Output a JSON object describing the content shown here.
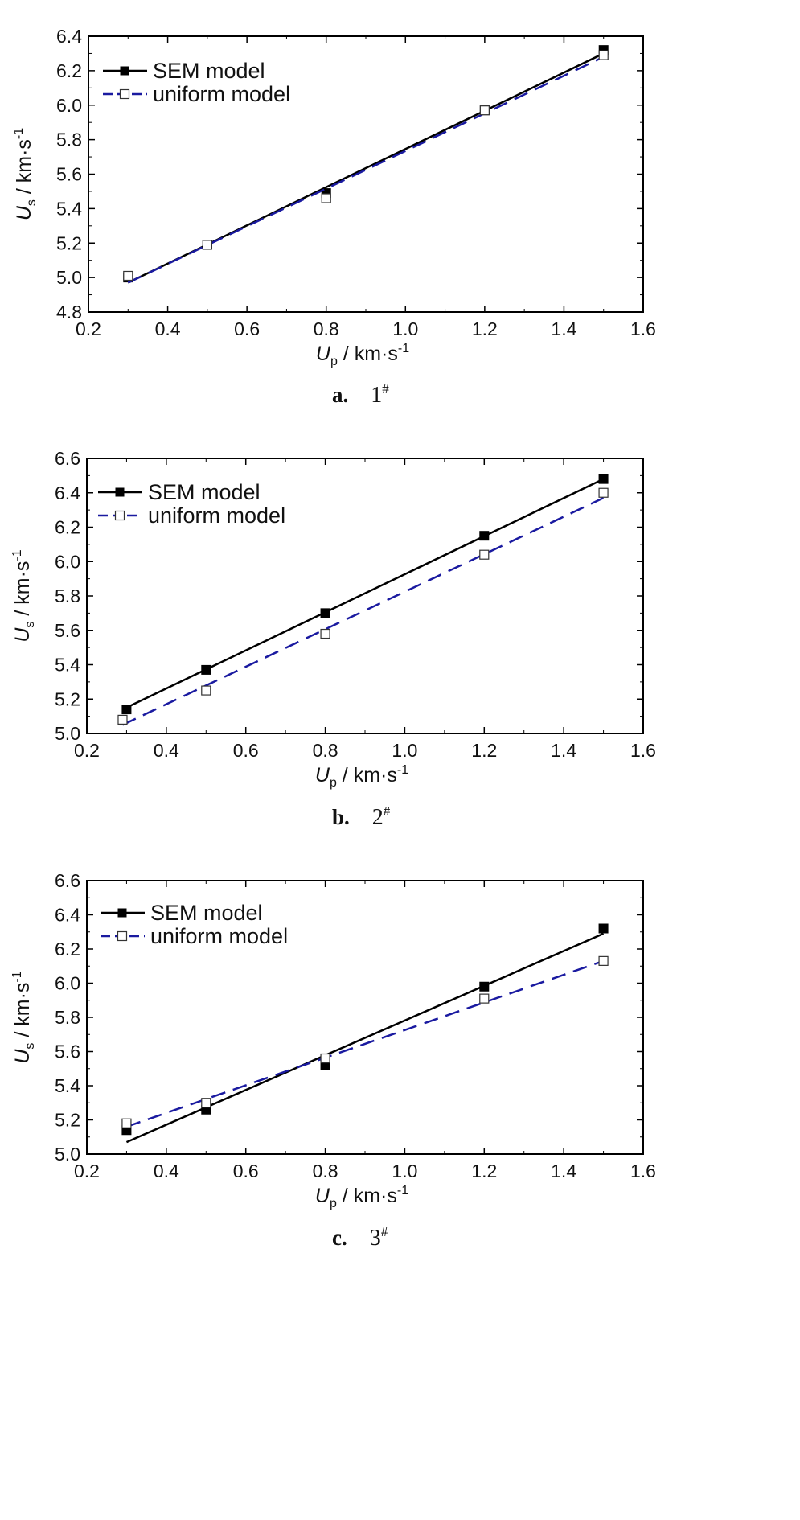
{
  "chart_data": [
    {
      "type": "line",
      "caption": {
        "letter": "a.",
        "number": "1",
        "superscript": "#"
      },
      "xlabel": {
        "main": "U",
        "sub": "p",
        "unit": " / km·s",
        "sup": "-1"
      },
      "ylabel": {
        "main": "U",
        "sub": "s",
        "unit": " / km·s",
        "sup": "-1"
      },
      "xlim": [
        0.2,
        1.6
      ],
      "ylim": [
        4.8,
        6.4
      ],
      "xticks": [
        "0.2",
        "0.4",
        "0.6",
        "0.8",
        "1.0",
        "1.2",
        "1.4",
        "1.6"
      ],
      "yticks": [
        "4.8",
        "5.0",
        "5.2",
        "5.4",
        "5.6",
        "5.8",
        "6.0",
        "6.2",
        "6.4"
      ],
      "legend_position": "top-left",
      "series": [
        {
          "name": "SEM model",
          "color": "#000000",
          "marker": "filled-square",
          "line": "solid",
          "points": [
            [
              0.3,
              5.0
            ],
            [
              0.5,
              5.19
            ],
            [
              0.8,
              5.49
            ],
            [
              1.2,
              5.97
            ],
            [
              1.5,
              6.32
            ]
          ],
          "fit": [
            [
              0.3,
              4.97
            ],
            [
              1.5,
              6.3
            ]
          ]
        },
        {
          "name": "uniform model",
          "color": "#1a1aa0",
          "marker": "open-square",
          "line": "dashed",
          "points": [
            [
              0.3,
              5.01
            ],
            [
              0.5,
              5.19
            ],
            [
              0.8,
              5.46
            ],
            [
              1.2,
              5.97
            ],
            [
              1.5,
              6.29
            ]
          ],
          "fit": [
            [
              0.3,
              4.97
            ],
            [
              1.5,
              6.28
            ]
          ]
        }
      ]
    },
    {
      "type": "line",
      "caption": {
        "letter": "b.",
        "number": "2",
        "superscript": "#"
      },
      "xlabel": {
        "main": "U",
        "sub": "p",
        "unit": " / km·s",
        "sup": "-1"
      },
      "ylabel": {
        "main": "U",
        "sub": "s",
        "unit": " / km·s",
        "sup": "-1"
      },
      "xlim": [
        0.2,
        1.6
      ],
      "ylim": [
        5.0,
        6.6
      ],
      "xticks": [
        "0.2",
        "0.4",
        "0.6",
        "0.8",
        "1.0",
        "1.2",
        "1.4",
        "1.6"
      ],
      "yticks": [
        "5.0",
        "5.2",
        "5.4",
        "5.6",
        "5.8",
        "6.0",
        "6.2",
        "6.4",
        "6.6"
      ],
      "legend_position": "top-left",
      "series": [
        {
          "name": "SEM model",
          "color": "#000000",
          "marker": "filled-square",
          "line": "solid",
          "points": [
            [
              0.3,
              5.14
            ],
            [
              0.5,
              5.37
            ],
            [
              0.8,
              5.7
            ],
            [
              1.2,
              6.15
            ],
            [
              1.5,
              6.48
            ]
          ],
          "fit": [
            [
              0.29,
              5.14
            ],
            [
              1.5,
              6.48
            ]
          ]
        },
        {
          "name": "uniform model",
          "color": "#1a1aa0",
          "marker": "open-square",
          "line": "dashed",
          "points": [
            [
              0.29,
              5.08
            ],
            [
              0.5,
              5.25
            ],
            [
              0.8,
              5.58
            ],
            [
              1.2,
              6.04
            ],
            [
              1.5,
              6.4
            ]
          ],
          "fit": [
            [
              0.29,
              5.05
            ],
            [
              1.5,
              6.37
            ]
          ]
        }
      ]
    },
    {
      "type": "line",
      "caption": {
        "letter": "c.",
        "number": "3",
        "superscript": "#"
      },
      "xlabel": {
        "main": "U",
        "sub": "p",
        "unit": " / km·s",
        "sup": "-1"
      },
      "ylabel": {
        "main": "U",
        "sub": "s",
        "unit": " / km·s",
        "sup": "-1"
      },
      "xlim": [
        0.2,
        1.6
      ],
      "ylim": [
        5.0,
        6.6
      ],
      "xticks": [
        "0.2",
        "0.4",
        "0.6",
        "0.8",
        "1.0",
        "1.2",
        "1.4",
        "1.6"
      ],
      "yticks": [
        "5.0",
        "5.2",
        "5.4",
        "5.6",
        "5.8",
        "6.0",
        "6.2",
        "6.4",
        "6.6"
      ],
      "legend_position": "top-left",
      "series": [
        {
          "name": "SEM model",
          "color": "#000000",
          "marker": "filled-square",
          "line": "solid",
          "points": [
            [
              0.3,
              5.14
            ],
            [
              0.5,
              5.26
            ],
            [
              0.8,
              5.52
            ],
            [
              1.2,
              5.98
            ],
            [
              1.5,
              6.32
            ]
          ],
          "fit": [
            [
              0.3,
              5.07
            ],
            [
              1.5,
              6.29
            ]
          ]
        },
        {
          "name": "uniform model",
          "color": "#1a1aa0",
          "marker": "open-square",
          "line": "dashed",
          "points": [
            [
              0.3,
              5.18
            ],
            [
              0.5,
              5.3
            ],
            [
              0.8,
              5.56
            ],
            [
              1.2,
              5.91
            ],
            [
              1.5,
              6.13
            ]
          ],
          "fit": [
            [
              0.3,
              5.16
            ],
            [
              1.5,
              6.13
            ]
          ]
        }
      ]
    }
  ]
}
